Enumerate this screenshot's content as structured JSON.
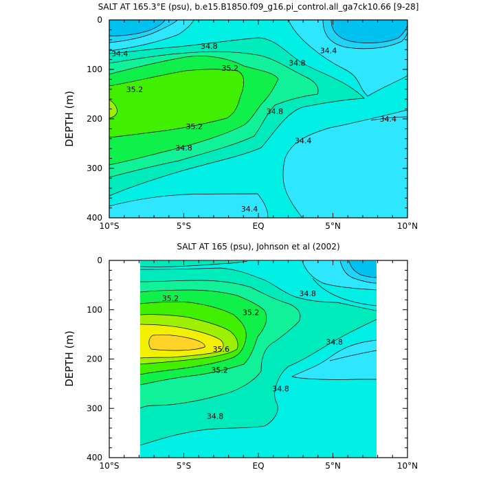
{
  "chart_data": [
    {
      "type": "contour",
      "title": "SALT AT 165.3°E (psu), b.e15.B1850.f09_g16.pi_control.all_ga7ck10.66 [9-28]",
      "ylabel": "DEPTH (m)",
      "xlim": [
        -10,
        10
      ],
      "ylim": [
        400,
        0
      ],
      "x_ticks": [
        {
          "value": -10,
          "label": "10°S"
        },
        {
          "value": -5,
          "label": "5°S"
        },
        {
          "value": 0,
          "label": "EQ"
        },
        {
          "value": 5,
          "label": "5°N"
        },
        {
          "value": 10,
          "label": "10°N"
        }
      ],
      "y_ticks": [
        {
          "value": 0,
          "label": "0"
        },
        {
          "value": 100,
          "label": "100"
        },
        {
          "value": 200,
          "label": "200"
        },
        {
          "value": 300,
          "label": "300"
        },
        {
          "value": 400,
          "label": "400"
        }
      ],
      "data_lon_range": [
        -10,
        10
      ],
      "contour_labels": [
        {
          "text": "34.4",
          "x": -9.3,
          "y": 68
        },
        {
          "text": "34.8",
          "x": -3.3,
          "y": 53
        },
        {
          "text": "35.2",
          "x": -1.9,
          "y": 97
        },
        {
          "text": "35.2",
          "x": -8.3,
          "y": 140
        },
        {
          "text": "35.2",
          "x": -4.3,
          "y": 215
        },
        {
          "text": "34.8",
          "x": -5.0,
          "y": 258
        },
        {
          "text": "34.4",
          "x": -0.6,
          "y": 382
        },
        {
          "text": "34.4",
          "x": 4.7,
          "y": 62
        },
        {
          "text": "34.8",
          "x": 2.6,
          "y": 87
        },
        {
          "text": "34.8",
          "x": 1.1,
          "y": 185
        },
        {
          "text": "34.4",
          "x": 3.0,
          "y": 244
        },
        {
          "text": "34.4",
          "x": 8.7,
          "y": 200
        }
      ]
    },
    {
      "type": "contour",
      "title": "SALT AT 165 (psu), Johnson et al (2002)",
      "ylabel": "DEPTH (m)",
      "xlim": [
        -10,
        10
      ],
      "ylim": [
        400,
        0
      ],
      "x_ticks": [
        {
          "value": -10,
          "label": "10°S"
        },
        {
          "value": -5,
          "label": "5°S"
        },
        {
          "value": 0,
          "label": "EQ"
        },
        {
          "value": 5,
          "label": "5°N"
        },
        {
          "value": 10,
          "label": "10°N"
        }
      ],
      "y_ticks": [
        {
          "value": 0,
          "label": "0"
        },
        {
          "value": 100,
          "label": "100"
        },
        {
          "value": 200,
          "label": "200"
        },
        {
          "value": 300,
          "label": "300"
        },
        {
          "value": 400,
          "label": "400"
        }
      ],
      "data_lon_range": [
        -8,
        8
      ],
      "contour_labels": [
        {
          "text": "35.2",
          "x": -5.9,
          "y": 77
        },
        {
          "text": "35.2",
          "x": -0.5,
          "y": 105
        },
        {
          "text": "35.6",
          "x": -2.5,
          "y": 180
        },
        {
          "text": "35.2",
          "x": -2.6,
          "y": 222
        },
        {
          "text": "34.8",
          "x": 3.3,
          "y": 67
        },
        {
          "text": "34.8",
          "x": 5.1,
          "y": 165
        },
        {
          "text": "34.8",
          "x": 1.5,
          "y": 260
        },
        {
          "text": "34.8",
          "x": -2.9,
          "y": 316
        }
      ]
    }
  ],
  "colors": {
    "s_lt_34_0": "#00c2f0",
    "s_34_0_34_2": "#1fd4f7",
    "s_34_2_34_4": "#2ee7ff",
    "s_34_4_34_6": "#00f0e6",
    "s_34_6_34_8": "#00ebbb",
    "s_34_8_35_0": "#11f19a",
    "s_35_0_35_2": "#10f04a",
    "s_35_2_35_4": "#40f000",
    "s_35_4_35_6": "#9cf000",
    "s_35_6_35_8": "#f0f000",
    "s_gt_35_8": "#ffd327"
  }
}
